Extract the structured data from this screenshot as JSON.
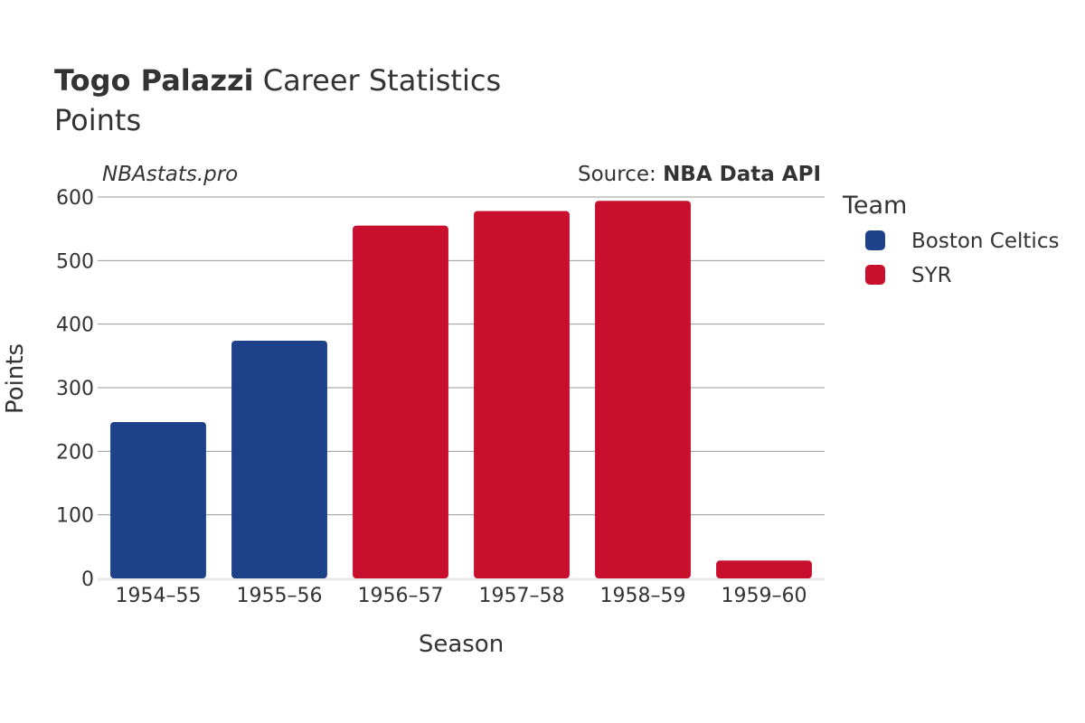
{
  "header": {
    "title_bold": "Togo Palazzi",
    "title_rest": " Career Statistics",
    "subtitle": "Points"
  },
  "watermark": "NBAstats.pro",
  "source": {
    "prefix": "Source: ",
    "name": "NBA Data API"
  },
  "legend": {
    "title": "Team",
    "items": [
      {
        "label": "Boston Celtics",
        "color": "#1d428a"
      },
      {
        "label": "SYR",
        "color": "#c8102e"
      }
    ]
  },
  "chart_data": {
    "type": "bar",
    "title": "Togo Palazzi Career Statistics",
    "subtitle": "Points",
    "xlabel": "Season",
    "ylabel": "Points",
    "ylim": [
      0,
      600
    ],
    "yticks": [
      0,
      100,
      200,
      300,
      400,
      500,
      600
    ],
    "grid": true,
    "legend_position": "right",
    "categories": [
      "1954–55",
      "1955–56",
      "1956–57",
      "1957–58",
      "1958–59",
      "1959–60"
    ],
    "series": [
      {
        "name": "Boston Celtics",
        "color": "#1d428a",
        "values": [
          246,
          374,
          null,
          null,
          null,
          null
        ]
      },
      {
        "name": "SYR",
        "color": "#c8102e",
        "values": [
          null,
          null,
          555,
          578,
          594,
          28
        ]
      }
    ]
  }
}
